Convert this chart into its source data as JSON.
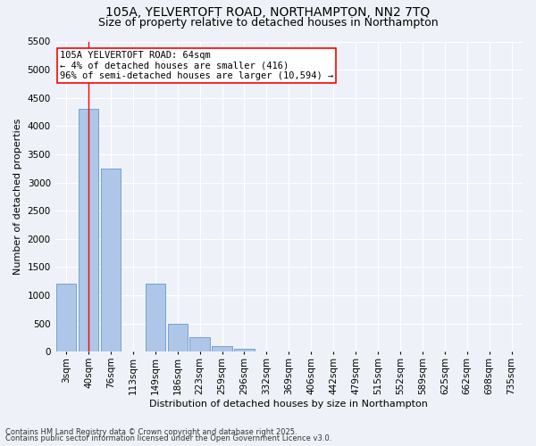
{
  "title1": "105A, YELVERTOFT ROAD, NORTHAMPTON, NN2 7TQ",
  "title2": "Size of property relative to detached houses in Northampton",
  "xlabel": "Distribution of detached houses by size in Northampton",
  "ylabel": "Number of detached properties",
  "bar_labels": [
    "3sqm",
    "40sqm",
    "76sqm",
    "113sqm",
    "149sqm",
    "186sqm",
    "223sqm",
    "259sqm",
    "296sqm",
    "332sqm",
    "369sqm",
    "406sqm",
    "442sqm",
    "479sqm",
    "515sqm",
    "552sqm",
    "589sqm",
    "625sqm",
    "662sqm",
    "698sqm",
    "735sqm"
  ],
  "bar_values": [
    1200,
    4300,
    3250,
    0,
    1200,
    500,
    250,
    100,
    50,
    0,
    0,
    0,
    0,
    0,
    0,
    0,
    0,
    0,
    0,
    0,
    0
  ],
  "bar_color": "#aec6e8",
  "bar_edge_color": "#6699cc",
  "vline_x": 1.0,
  "vline_color": "red",
  "annotation_text": "105A YELVERTOFT ROAD: 64sqm\n← 4% of detached houses are smaller (416)\n96% of semi-detached houses are larger (10,594) →",
  "annotation_box_color": "white",
  "annotation_box_edge_color": "red",
  "ylim": [
    0,
    5500
  ],
  "yticks": [
    0,
    500,
    1000,
    1500,
    2000,
    2500,
    3000,
    3500,
    4000,
    4500,
    5000,
    5500
  ],
  "footnote1": "Contains HM Land Registry data © Crown copyright and database right 2025.",
  "footnote2": "Contains public sector information licensed under the Open Government Licence v3.0.",
  "bg_color": "#eef2f8",
  "grid_color": "white",
  "title_fontsize": 10,
  "subtitle_fontsize": 9,
  "annotation_fontsize": 7.5,
  "axis_fontsize": 7.5,
  "ylabel_fontsize": 8,
  "xlabel_fontsize": 8
}
